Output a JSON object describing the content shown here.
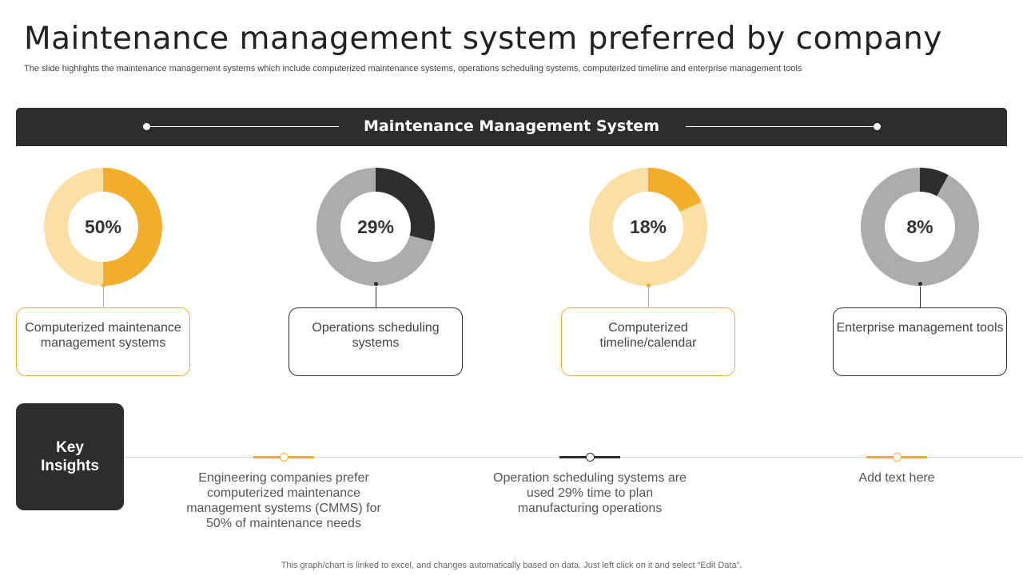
{
  "header": {
    "title": "Maintenance management system preferred by company",
    "subtitle": "The slide highlights the maintenance management systems which include computerized maintenance systems, operations scheduling systems, computerized timeline and enterprise management tools"
  },
  "banner": {
    "title": "Maintenance Management System"
  },
  "colors": {
    "yellow": "#f2ae2b",
    "yellow_light": "#fbdfa5",
    "dark": "#2e2d2d",
    "gray": "#aeabab"
  },
  "chart_data": [
    {
      "type": "pie",
      "title": "",
      "values": [
        50,
        50
      ],
      "center_label": "50%",
      "category": "Computerized maintenance management systems"
    },
    {
      "type": "pie",
      "title": "",
      "values": [
        29,
        71
      ],
      "center_label": "29%",
      "category": "Operations scheduling systems"
    },
    {
      "type": "pie",
      "title": "",
      "values": [
        18,
        82
      ],
      "center_label": "18%",
      "category": "Computerized timeline/calendar"
    },
    {
      "type": "pie",
      "title": "",
      "values": [
        8,
        92
      ],
      "center_label": "8%",
      "category": "Enterprise management tools"
    }
  ],
  "key_insights": {
    "label_line1": "Key",
    "label_line2": "Insights",
    "items": [
      "Engineering companies prefer computerized maintenance management systems (CMMS) for 50% of maintenance needs",
      "Operation scheduling systems are used 29% time to plan manufacturing operations",
      "Add text here"
    ]
  },
  "footer": "This graph/chart is linked to excel,  and changes automatically based on data. Just left click on it and select “Edit Data”."
}
